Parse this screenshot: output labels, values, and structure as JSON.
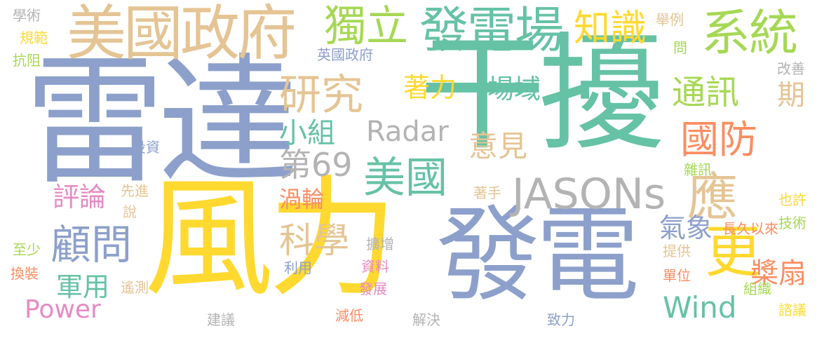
{
  "words": [
    {
      "text": "風力",
      "color": "#FFD92F"
    },
    {
      "text": "雷達",
      "color": "#8DA0CB"
    },
    {
      "text": "干擾",
      "color": "#66C2A5"
    },
    {
      "text": "發電",
      "color": "#8DA0CB"
    },
    {
      "text": "美國政府",
      "color": "#E5C494"
    },
    {
      "text": "發電場",
      "color": "#66C2A5"
    },
    {
      "text": "系統",
      "color": "#A6D854"
    },
    {
      "text": "獨立",
      "color": "#A6D854"
    },
    {
      "text": "知識",
      "color": "#FFD92F"
    },
    {
      "text": "研究",
      "color": "#E5C494"
    },
    {
      "text": "JASONs",
      "color": "#B3B3B3"
    },
    {
      "text": "Radar",
      "color": "#B3B3B3"
    },
    {
      "text": "國防",
      "color": "#FC8D62"
    },
    {
      "text": "美國",
      "color": "#66C2A5"
    },
    {
      "text": "應",
      "color": "#E5C494"
    },
    {
      "text": "更",
      "color": "#FFD92F"
    },
    {
      "text": "顧問",
      "color": "#8DA0CB"
    },
    {
      "text": "Power",
      "color": "#E78AC3"
    },
    {
      "text": "Wind",
      "color": "#66C2A5"
    },
    {
      "text": "第69",
      "color": "#B3B3B3"
    },
    {
      "text": "通訊",
      "color": "#A6D854"
    },
    {
      "text": "期",
      "color": "#E5C494"
    },
    {
      "text": "小組",
      "color": "#66C2A5"
    },
    {
      "text": "意見",
      "color": "#E5C494"
    },
    {
      "text": "著力",
      "color": "#FFD92F"
    },
    {
      "text": "場域",
      "color": "#66C2A5"
    },
    {
      "text": "評論",
      "color": "#E78AC3"
    },
    {
      "text": "渦輪",
      "color": "#FC8D62"
    },
    {
      "text": "科學",
      "color": "#E5C494"
    },
    {
      "text": "軍用",
      "color": "#66C2A5"
    },
    {
      "text": "氣象",
      "color": "#8DA0CB"
    },
    {
      "text": "槳扇",
      "color": "#FC8D62"
    },
    {
      "text": "學術",
      "color": "#B3B3B3"
    },
    {
      "text": "規範",
      "color": "#FFD92F"
    },
    {
      "text": "抗阻",
      "color": "#A6D854"
    },
    {
      "text": "英國政府",
      "color": "#8DA0CB"
    },
    {
      "text": "投資",
      "color": "#8DA0CB"
    },
    {
      "text": "舉例",
      "color": "#E5C494"
    },
    {
      "text": "問",
      "color": "#A6D854"
    },
    {
      "text": "改善",
      "color": "#B3B3B3"
    },
    {
      "text": "雜訊",
      "color": "#A6D854"
    },
    {
      "text": "也許",
      "color": "#FFD92F"
    },
    {
      "text": "技術",
      "color": "#A6D854"
    },
    {
      "text": "長久以來",
      "color": "#FC8D62"
    },
    {
      "text": "提供",
      "color": "#E5C494"
    },
    {
      "text": "單位",
      "color": "#FC8D62"
    },
    {
      "text": "組織",
      "color": "#A6D854"
    },
    {
      "text": "諮議",
      "color": "#FFD92F"
    },
    {
      "text": "先進",
      "color": "#E5C494"
    },
    {
      "text": "說",
      "color": "#E5C494"
    },
    {
      "text": "著手",
      "color": "#E5C494"
    },
    {
      "text": "擴增",
      "color": "#B3B3B3"
    },
    {
      "text": "資料",
      "color": "#E78AC3"
    },
    {
      "text": "利用",
      "color": "#8DA0CB"
    },
    {
      "text": "發展",
      "color": "#E78AC3"
    },
    {
      "text": "遙測",
      "color": "#E5C494"
    },
    {
      "text": "至少",
      "color": "#A6D854"
    },
    {
      "text": "換裝",
      "color": "#FC8D62"
    },
    {
      "text": "建議",
      "color": "#B3B3B3"
    },
    {
      "text": "減低",
      "color": "#FC8D62"
    },
    {
      "text": "解決",
      "color": "#B3B3B3"
    },
    {
      "text": "致力",
      "color": "#8DA0CB"
    }
  ]
}
